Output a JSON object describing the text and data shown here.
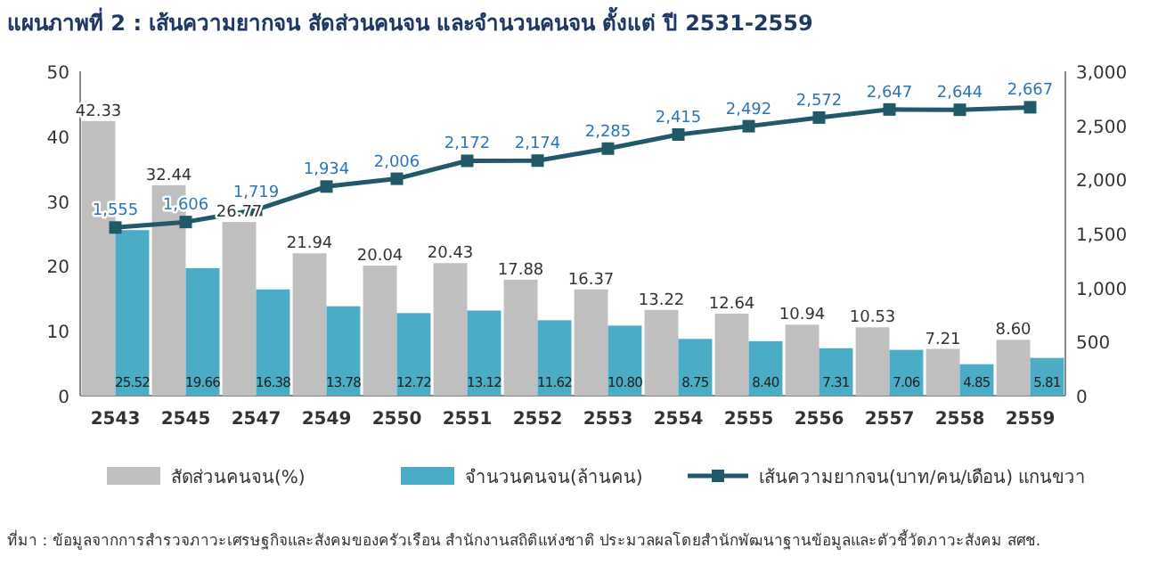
{
  "chart_data": {
    "type": "bar",
    "title": "แผนภาพที่ 2 : เส้นความยากจน สัดส่วนคนจน และจำนวนคนจน ตั้งแต่ ปี 2531-2559",
    "categories": [
      "2543",
      "2545",
      "2547",
      "2549",
      "2550",
      "2551",
      "2552",
      "2553",
      "2554",
      "2555",
      "2556",
      "2557",
      "2558",
      "2559"
    ],
    "series": [
      {
        "name": "สัดส่วนคนจน(%)",
        "type": "bar",
        "color": "#bfbfbf",
        "values": [
          42.33,
          32.44,
          26.77,
          21.94,
          20.04,
          20.43,
          17.88,
          16.37,
          13.22,
          12.64,
          10.94,
          10.53,
          7.21,
          8.6
        ],
        "value_labels": [
          "42.33",
          "32.44",
          "26.77",
          "21.94",
          "20.04",
          "20.43",
          "17.88",
          "16.37",
          "13.22",
          "12.64",
          "10.94",
          "10.53",
          "7.21",
          "8.60"
        ]
      },
      {
        "name": "จำนวนคนจน(ล้านคน)",
        "type": "bar",
        "color": "#4bacc6",
        "values": [
          25.52,
          19.66,
          16.38,
          13.78,
          12.72,
          13.12,
          11.62,
          10.8,
          8.75,
          8.4,
          7.31,
          7.06,
          4.85,
          5.81
        ],
        "value_labels": [
          "25.52",
          "19.66",
          "16.38",
          "13.78",
          "12.72",
          "13.12",
          "11.62",
          "10.80",
          "8.75",
          "8.40",
          "7.31",
          "7.06",
          "4.85",
          "5.81"
        ]
      },
      {
        "name": "เส้นความยากจน(บาท/คน/เดือน) แกนขวา",
        "type": "line",
        "axis": "y2",
        "color": "#215968",
        "marker": "square",
        "values": [
          1555,
          1606,
          1719,
          1934,
          2006,
          2172,
          2174,
          2285,
          2415,
          2492,
          2572,
          2647,
          2644,
          2667
        ],
        "value_labels": [
          "1,555",
          "1,606",
          "1,719",
          "1,934",
          "2,006",
          "2,172",
          "2,174",
          "2,285",
          "2,415",
          "2,492",
          "2,572",
          "2,647",
          "2,644",
          "2,667"
        ]
      }
    ],
    "ylim": [
      0,
      50
    ],
    "yticks": [
      0,
      10,
      20,
      30,
      40,
      50
    ],
    "y2lim": [
      0,
      3000
    ],
    "y2ticks": [
      0,
      500,
      {
        "value": 1000,
        "label": "1,000"
      },
      {
        "value": 1500,
        "label": "1,500"
      },
      {
        "value": 2000,
        "label": "2,000"
      },
      {
        "value": 2500,
        "label": "2,500"
      },
      {
        "value": 3000,
        "label": "3,000"
      }
    ],
    "legend": "bottom",
    "annotations": [
      "ที่มา : ข้อมูลจากการสำรวจภาวะเศรษฐกิจและสังคมของครัวเรือน สำนักงานสถิติแห่งชาติ ประมวลผลโดยสำนักพัฒนาฐานข้อมูลและตัวชี้วัดภาวะสังคม สศช."
    ]
  }
}
